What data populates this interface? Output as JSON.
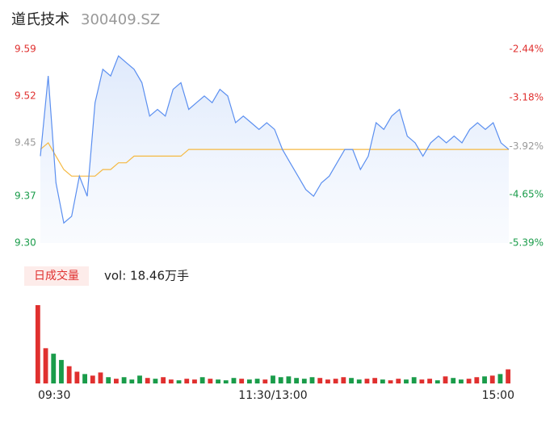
{
  "chart_data": {
    "type": "line",
    "title": "道氏技术",
    "subtitle": "300409.SZ",
    "categories": [
      "09:30",
      null,
      null,
      null,
      null,
      null,
      null,
      null,
      null,
      null,
      null,
      null,
      null,
      null,
      null,
      null,
      null,
      null,
      null,
      null,
      null,
      null,
      null,
      null,
      null,
      null,
      null,
      null,
      null,
      null,
      "11:30/13:00",
      null,
      null,
      null,
      null,
      null,
      null,
      null,
      null,
      null,
      null,
      null,
      null,
      null,
      null,
      null,
      null,
      null,
      null,
      null,
      null,
      null,
      null,
      null,
      null,
      null,
      null,
      null,
      null,
      null,
      "15:00"
    ],
    "series": [
      {
        "name": "price",
        "color": "#5b8ff0",
        "values": [
          9.43,
          9.55,
          9.39,
          9.33,
          9.34,
          9.4,
          9.37,
          9.51,
          9.56,
          9.55,
          9.58,
          9.57,
          9.56,
          9.54,
          9.49,
          9.5,
          9.49,
          9.53,
          9.54,
          9.5,
          9.51,
          9.52,
          9.51,
          9.53,
          9.52,
          9.48,
          9.49,
          9.48,
          9.47,
          9.48,
          9.47,
          9.44,
          9.42,
          9.4,
          9.38,
          9.37,
          9.39,
          9.4,
          9.42,
          9.44,
          9.44,
          9.41,
          9.43,
          9.48,
          9.47,
          9.49,
          9.5,
          9.46,
          9.45,
          9.43,
          9.45,
          9.46,
          9.45,
          9.46,
          9.45,
          9.47,
          9.48,
          9.47,
          9.48,
          9.45,
          9.44
        ]
      },
      {
        "name": "average",
        "color": "#f5b942",
        "values": [
          9.44,
          9.45,
          9.43,
          9.41,
          9.4,
          9.4,
          9.4,
          9.4,
          9.41,
          9.41,
          9.42,
          9.42,
          9.43,
          9.43,
          9.43,
          9.43,
          9.43,
          9.43,
          9.43,
          9.44,
          9.44,
          9.44,
          9.44,
          9.44,
          9.44,
          9.44,
          9.44,
          9.44,
          9.44,
          9.44,
          9.44,
          9.44,
          9.44,
          9.44,
          9.44,
          9.44,
          9.44,
          9.44,
          9.44,
          9.44,
          9.44,
          9.44,
          9.44,
          9.44,
          9.44,
          9.44,
          9.44,
          9.44,
          9.44,
          9.44,
          9.44,
          9.44,
          9.44,
          9.44,
          9.44,
          9.44,
          9.44,
          9.44,
          9.44,
          9.44,
          9.44
        ]
      }
    ],
    "ylim": [
      9.3,
      9.59
    ],
    "yticks": [
      9.59,
      9.52,
      9.45,
      9.37,
      {
        "value": 9.3,
        "label": "9.30"
      }
    ],
    "ytick_colors": [
      "#e0302f",
      "#e0302f",
      "#999999",
      "#1a9c4a",
      "#1a9c4a"
    ],
    "y2lim": [
      -5.39,
      -2.44
    ],
    "y2ticks": [
      {
        "value": -2.44,
        "label": "-2.44%"
      },
      {
        "value": -3.18,
        "label": "-3.18%"
      },
      {
        "value": -3.92,
        "label": "-3.92%"
      },
      {
        "value": -4.65,
        "label": "-4.65%"
      },
      {
        "value": -5.39,
        "label": "-5.39%"
      }
    ],
    "volume_legend": "日成交量",
    "volume_text": "vol: 18.46万手",
    "volume": {
      "ylim": [
        0,
        100
      ],
      "values": [
        100,
        45,
        38,
        30,
        22,
        15,
        12,
        10,
        14,
        8,
        6,
        8,
        5,
        10,
        7,
        6,
        8,
        5,
        4,
        6,
        5,
        8,
        6,
        5,
        4,
        7,
        6,
        5,
        6,
        5,
        10,
        8,
        9,
        7,
        6,
        8,
        7,
        5,
        6,
        8,
        7,
        5,
        6,
        7,
        5,
        4,
        6,
        5,
        8,
        5,
        6,
        4,
        9,
        7,
        5,
        6,
        8,
        9,
        10,
        12,
        18
      ],
      "colors": [
        "#e0302f",
        "#e0302f",
        "#1a9c4a",
        "#1a9c4a",
        "#e0302f",
        "#e0302f",
        "#1a9c4a",
        "#e0302f",
        "#e0302f",
        "#1a9c4a",
        "#e0302f",
        "#1a9c4a",
        "#1a9c4a",
        "#1a9c4a",
        "#e0302f",
        "#1a9c4a",
        "#e0302f",
        "#e0302f",
        "#1a9c4a",
        "#e0302f",
        "#e0302f",
        "#1a9c4a",
        "#e0302f",
        "#1a9c4a",
        "#1a9c4a",
        "#1a9c4a",
        "#e0302f",
        "#1a9c4a",
        "#1a9c4a",
        "#e0302f",
        "#1a9c4a",
        "#1a9c4a",
        "#1a9c4a",
        "#1a9c4a",
        "#1a9c4a",
        "#1a9c4a",
        "#e0302f",
        "#e0302f",
        "#e0302f",
        "#e0302f",
        "#1a9c4a",
        "#1a9c4a",
        "#e0302f",
        "#e0302f",
        "#1a9c4a",
        "#e0302f",
        "#e0302f",
        "#1a9c4a",
        "#1a9c4a",
        "#e0302f",
        "#e0302f",
        "#1a9c4a",
        "#e0302f",
        "#1a9c4a",
        "#1a9c4a",
        "#e0302f",
        "#e0302f",
        "#1a9c4a",
        "#e0302f",
        "#1a9c4a",
        "#e0302f"
      ]
    }
  }
}
